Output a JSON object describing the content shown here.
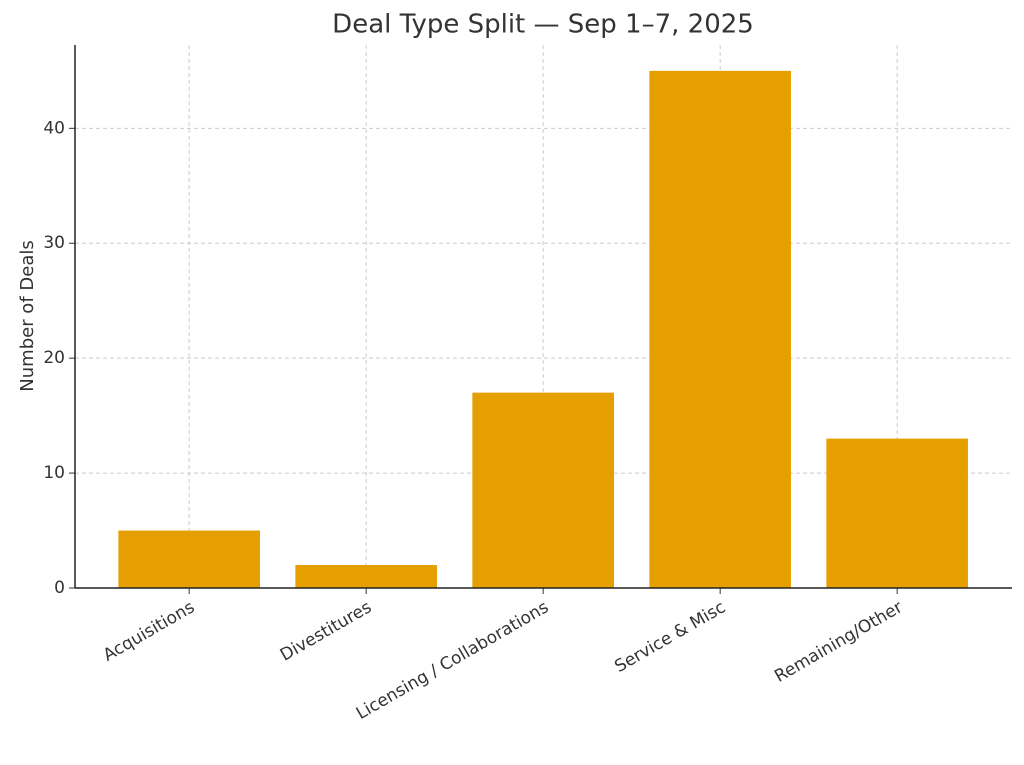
{
  "chart_data": {
    "type": "bar",
    "title": "Deal Type Split — Sep 1–7, 2025",
    "y_label": "Number of Deals",
    "categories": [
      "Acquisitions",
      "Divestitures",
      "Licensing / Collaborations",
      "Service & Misc",
      "Remaining/Other"
    ],
    "values": [
      5,
      2,
      17,
      45,
      13
    ],
    "color": "#E69F00",
    "ylim": [
      0,
      47.25
    ],
    "yticks": [
      0,
      10,
      20,
      30,
      40
    ],
    "grid": true
  }
}
